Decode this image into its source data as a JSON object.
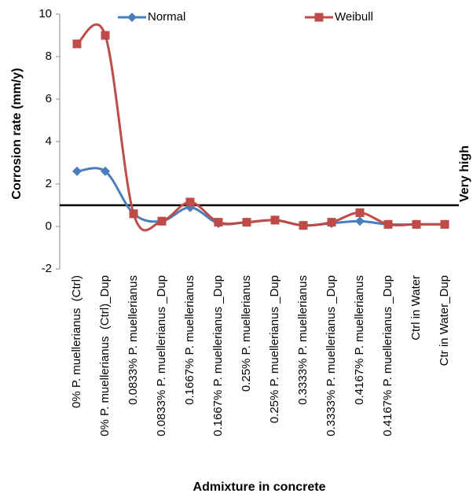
{
  "chart_data": {
    "type": "line",
    "x_label": "Admixture in concrete",
    "y_label": "Corrosion rate (mm/y)",
    "categories": [
      "0% P. muellerianus  (Ctrl)",
      "0% P. muellerianus  (Ctrl)_Dup",
      "0.0833% P. muellerianus",
      "0.0833% P. muellerianus _Dup",
      "0.1667% P. muellerianus",
      "0.1667% P. muellerianus _Dup",
      "0.25% P. muellerianus",
      "0.25% P. muellerianus _Dup",
      "0.3333% P. muellerianus",
      "0.3333% P. muellerianus _Dup",
      "0.4167% P. muellerianus",
      "0.4167% P. muellerianus _Dup",
      "Ctrl in Water",
      "Ctr in Water_Dup"
    ],
    "series": [
      {
        "name": "Normal",
        "color": "#4a7ebb",
        "marker": "diamond",
        "values": [
          2.6,
          2.6,
          0.6,
          0.25,
          0.9,
          0.15,
          0.2,
          0.3,
          0.05,
          0.15,
          0.25,
          0.1,
          0.1,
          0.1
        ]
      },
      {
        "name": "Weibull",
        "color": "#be4b48",
        "marker": "square",
        "values": [
          8.6,
          9.0,
          0.6,
          0.25,
          1.15,
          0.2,
          0.2,
          0.3,
          0.05,
          0.2,
          0.65,
          0.1,
          0.1,
          0.1
        ]
      }
    ],
    "reference_line": {
      "value": 1,
      "label": "Very high"
    },
    "smooth": true,
    "ylim": [
      -2,
      10
    ],
    "yticks": [
      -2,
      0,
      2,
      4,
      6,
      8,
      10
    ]
  }
}
